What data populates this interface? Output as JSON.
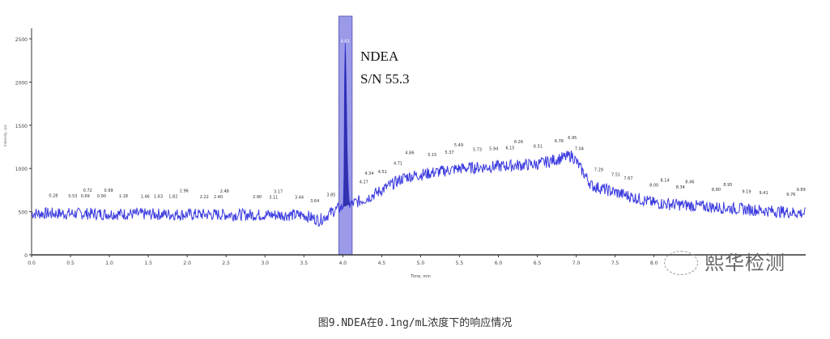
{
  "chart_data": {
    "type": "line",
    "xlabel": "Time, min",
    "ylabel": "Intensity, cps",
    "xlim": [
      0,
      9.95
    ],
    "ylim": [
      0,
      2700
    ],
    "xticks": [
      0.0,
      0.5,
      1.0,
      1.5,
      2.0,
      2.5,
      3.0,
      3.5,
      4.0,
      4.5,
      5.0,
      5.5,
      6.0,
      6.5,
      7.0,
      7.5,
      8.0
    ],
    "yticks": [
      0,
      500,
      1000,
      1500,
      2000,
      2500
    ],
    "grid": false,
    "line_color": "#3a3adf",
    "highlight": {
      "from": 3.95,
      "to": 4.12,
      "color": "#9a9ae8"
    },
    "baseline": [
      [
        0,
        480
      ],
      [
        3.5,
        460
      ],
      [
        3.7,
        400
      ],
      [
        3.9,
        520
      ],
      [
        4.3,
        650
      ],
      [
        4.8,
        900
      ],
      [
        5.5,
        1000
      ],
      [
        6.5,
        1050
      ],
      [
        6.95,
        1150
      ],
      [
        7.2,
        800
      ],
      [
        8.0,
        600
      ],
      [
        9.95,
        480
      ]
    ],
    "main_peak": {
      "time": 4.03,
      "label": "4.03",
      "height": 2400
    },
    "annotation": {
      "line1": "NDEA",
      "line2": "S/N 55.3"
    },
    "peak_labels": [
      "0.28",
      "0.53",
      "0.69",
      "0.72",
      "0.90",
      "0.99",
      "1.18",
      "1.46",
      "1.63",
      "1.82",
      "1.96",
      "2.22",
      "2.40",
      "2.48",
      "2.90",
      "3.11",
      "3.17",
      "3.44",
      "3.64",
      "3.85",
      "4.27",
      "4.34",
      "4.51",
      "4.71",
      "4.86",
      "5.15",
      "5.37",
      "5.49",
      "5.73",
      "5.94",
      "6.15",
      "6.26",
      "6.51",
      "6.78",
      "6.95",
      "7.04",
      "7.29",
      "7.51",
      "7.67",
      "8.00",
      "8.14",
      "8.34",
      "8.46",
      "8.80",
      "8.95",
      "9.19",
      "9.41",
      "9.76",
      "9.89"
    ]
  },
  "watermark": "熙华检测",
  "caption": "图9.NDEA在0.1ng/mL浓度下的响应情况"
}
